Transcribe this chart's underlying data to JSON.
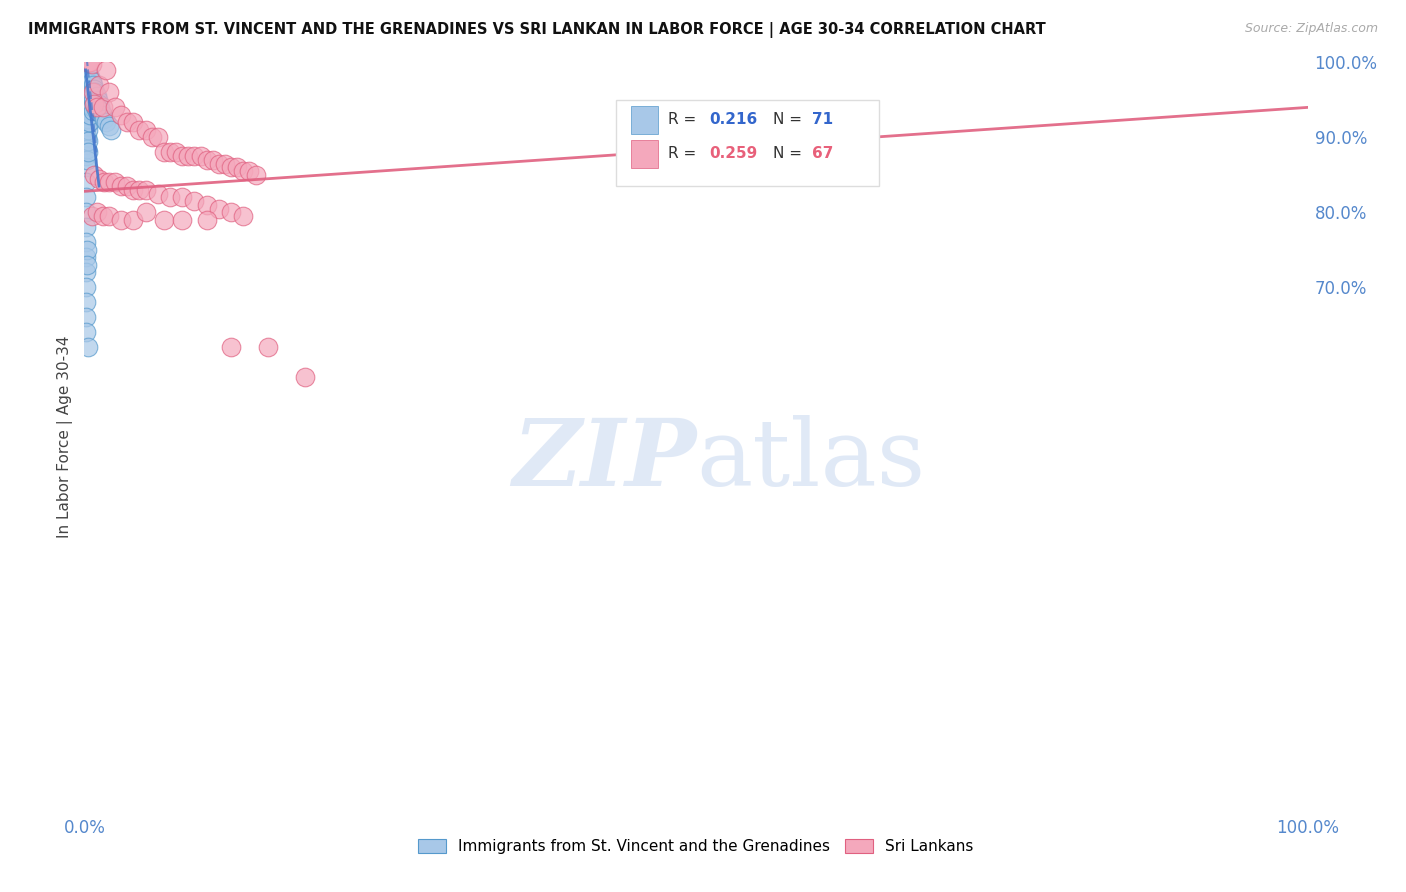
{
  "title": "IMMIGRANTS FROM ST. VINCENT AND THE GRENADINES VS SRI LANKAN IN LABOR FORCE | AGE 30-34 CORRELATION CHART",
  "source": "Source: ZipAtlas.com",
  "ylabel": "In Labor Force | Age 30-34",
  "xlim": [
    0.0,
    1.0
  ],
  "ylim": [
    0.0,
    1.0
  ],
  "legend_r1": "0.216",
  "legend_n1": "71",
  "legend_r2": "0.259",
  "legend_n2": "67",
  "label1": "Immigrants from St. Vincent and the Grenadines",
  "label2": "Sri Lankans",
  "color1": "#a8c8e8",
  "color2": "#f4a8bc",
  "color1_edge": "#5599cc",
  "color2_edge": "#e06080",
  "trendline1_color": "#4477cc",
  "trendline2_color": "#e06080",
  "watermark_color": "#c8d8f0",
  "background_color": "#ffffff",
  "grid_color": "#cccccc",
  "tick_color": "#5588cc",
  "title_color": "#111111",
  "source_color": "#aaaaaa",
  "ylabel_color": "#444444",
  "blue_x": [
    0.001,
    0.001,
    0.001,
    0.001,
    0.001,
    0.001,
    0.001,
    0.001,
    0.001,
    0.001,
    0.001,
    0.001,
    0.001,
    0.002,
    0.002,
    0.002,
    0.002,
    0.002,
    0.002,
    0.002,
    0.002,
    0.002,
    0.003,
    0.003,
    0.003,
    0.003,
    0.003,
    0.003,
    0.003,
    0.003,
    0.004,
    0.004,
    0.004,
    0.004,
    0.004,
    0.005,
    0.005,
    0.005,
    0.005,
    0.006,
    0.006,
    0.006,
    0.007,
    0.007,
    0.007,
    0.008,
    0.008,
    0.009,
    0.009,
    0.01,
    0.01,
    0.011,
    0.012,
    0.013,
    0.014,
    0.015,
    0.016,
    0.018,
    0.02,
    0.022,
    0.001,
    0.001,
    0.001,
    0.001,
    0.001,
    0.001,
    0.001,
    0.001,
    0.002,
    0.002,
    0.003
  ],
  "blue_y": [
    1.0,
    0.98,
    0.965,
    0.95,
    0.935,
    0.92,
    0.905,
    0.89,
    0.875,
    0.86,
    0.84,
    0.82,
    0.8,
    0.995,
    0.975,
    0.96,
    0.945,
    0.93,
    0.915,
    0.9,
    0.885,
    0.87,
    0.99,
    0.97,
    0.955,
    0.94,
    0.925,
    0.91,
    0.895,
    0.88,
    0.985,
    0.965,
    0.95,
    0.935,
    0.92,
    0.98,
    0.96,
    0.945,
    0.93,
    0.975,
    0.955,
    0.94,
    0.97,
    0.95,
    0.935,
    0.965,
    0.945,
    0.96,
    0.94,
    0.955,
    0.935,
    0.95,
    0.945,
    0.94,
    0.935,
    0.93,
    0.925,
    0.92,
    0.915,
    0.91,
    0.78,
    0.76,
    0.74,
    0.72,
    0.7,
    0.68,
    0.66,
    0.64,
    0.75,
    0.73,
    0.62
  ],
  "pink_x": [
    0.002,
    0.003,
    0.004,
    0.005,
    0.006,
    0.007,
    0.008,
    0.01,
    0.012,
    0.015,
    0.018,
    0.02,
    0.025,
    0.03,
    0.035,
    0.04,
    0.045,
    0.05,
    0.055,
    0.06,
    0.065,
    0.07,
    0.075,
    0.08,
    0.085,
    0.09,
    0.095,
    0.1,
    0.105,
    0.11,
    0.115,
    0.12,
    0.125,
    0.13,
    0.135,
    0.14,
    0.008,
    0.012,
    0.016,
    0.02,
    0.025,
    0.03,
    0.035,
    0.04,
    0.045,
    0.05,
    0.06,
    0.07,
    0.08,
    0.09,
    0.1,
    0.11,
    0.12,
    0.13,
    0.006,
    0.01,
    0.015,
    0.02,
    0.03,
    0.04,
    0.05,
    0.065,
    0.08,
    0.1,
    0.12,
    0.15,
    0.18
  ],
  "pink_y": [
    1.0,
    1.0,
    1.0,
    1.0,
    0.998,
    0.96,
    0.945,
    0.94,
    0.97,
    0.94,
    0.99,
    0.96,
    0.94,
    0.93,
    0.92,
    0.92,
    0.91,
    0.91,
    0.9,
    0.9,
    0.88,
    0.88,
    0.88,
    0.875,
    0.875,
    0.875,
    0.875,
    0.87,
    0.87,
    0.865,
    0.865,
    0.86,
    0.86,
    0.855,
    0.855,
    0.85,
    0.85,
    0.845,
    0.84,
    0.84,
    0.84,
    0.835,
    0.835,
    0.83,
    0.83,
    0.83,
    0.825,
    0.82,
    0.82,
    0.815,
    0.81,
    0.805,
    0.8,
    0.795,
    0.795,
    0.8,
    0.795,
    0.795,
    0.79,
    0.79,
    0.8,
    0.79,
    0.79,
    0.79,
    0.62,
    0.62,
    0.58
  ],
  "pink_trend_x0": 0.0,
  "pink_trend_x1": 1.0,
  "pink_trend_y0": 0.828,
  "pink_trend_y1": 0.94,
  "blue_trend_dashed_x0": 0.001,
  "blue_trend_dashed_x1": 0.015,
  "blue_trend_dashed_y0": 1.02,
  "blue_trend_dashed_y1": 0.87,
  "blue_trend_solid_x0": 0.001,
  "blue_trend_solid_x1": 0.015,
  "blue_trend_solid_y0": 0.99,
  "blue_trend_solid_y1": 0.84
}
